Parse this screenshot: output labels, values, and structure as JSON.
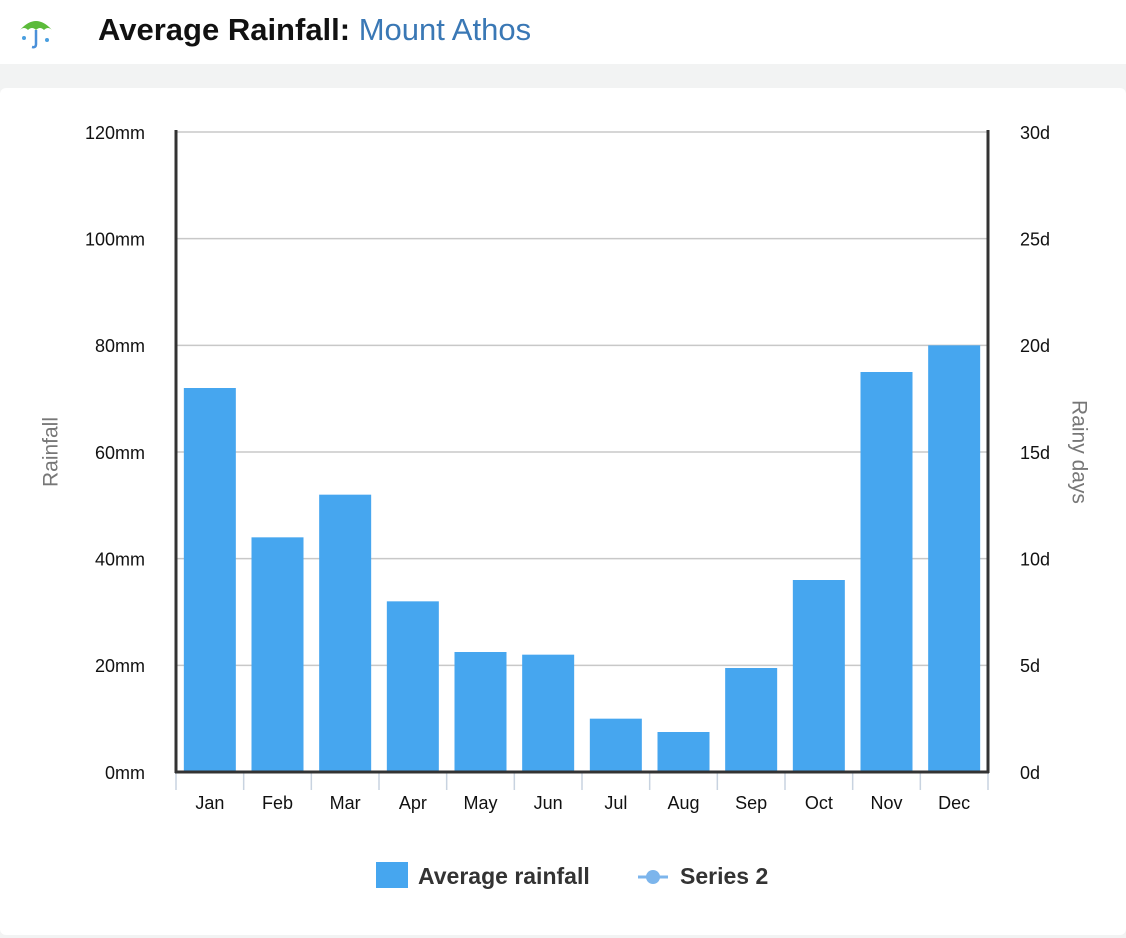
{
  "chart_data": {
    "type": "bar",
    "title": "Average Rainfall:",
    "place": "Mount Athos",
    "ylabel": "Rainfall",
    "y2label": "Rainy days",
    "categories": [
      "Jan",
      "Feb",
      "Mar",
      "Apr",
      "May",
      "Jun",
      "Jul",
      "Aug",
      "Sep",
      "Oct",
      "Nov",
      "Dec"
    ],
    "series": [
      {
        "name": "Average rainfall",
        "color": "#46a6ef",
        "values": [
          72,
          44,
          52,
          32,
          22.5,
          22,
          10,
          7.5,
          19.5,
          36,
          75,
          80
        ]
      },
      {
        "name": "Series 2",
        "color": "#7cb5ec",
        "axis": "y2",
        "values": [
          null,
          null,
          null,
          null,
          null,
          null,
          null,
          null,
          null,
          null,
          null,
          null
        ]
      }
    ],
    "ylim": [
      0,
      120
    ],
    "yticks": [
      {
        "value": 0,
        "label": "0mm"
      },
      {
        "value": 20,
        "label": "20mm"
      },
      {
        "value": 40,
        "label": "40mm"
      },
      {
        "value": 60,
        "label": "60mm"
      },
      {
        "value": 80,
        "label": "80mm"
      },
      {
        "value": 100,
        "label": "100mm"
      },
      {
        "value": 120,
        "label": "120mm"
      }
    ],
    "y2lim": [
      0,
      30
    ],
    "y2ticks": [
      {
        "value": 0,
        "label": "0d"
      },
      {
        "value": 5,
        "label": "5d"
      },
      {
        "value": 10,
        "label": "10d"
      },
      {
        "value": 15,
        "label": "15d"
      },
      {
        "value": 20,
        "label": "20d"
      },
      {
        "value": 25,
        "label": "25d"
      },
      {
        "value": 30,
        "label": "30d"
      }
    ],
    "grid": true,
    "legend": "bottom"
  }
}
